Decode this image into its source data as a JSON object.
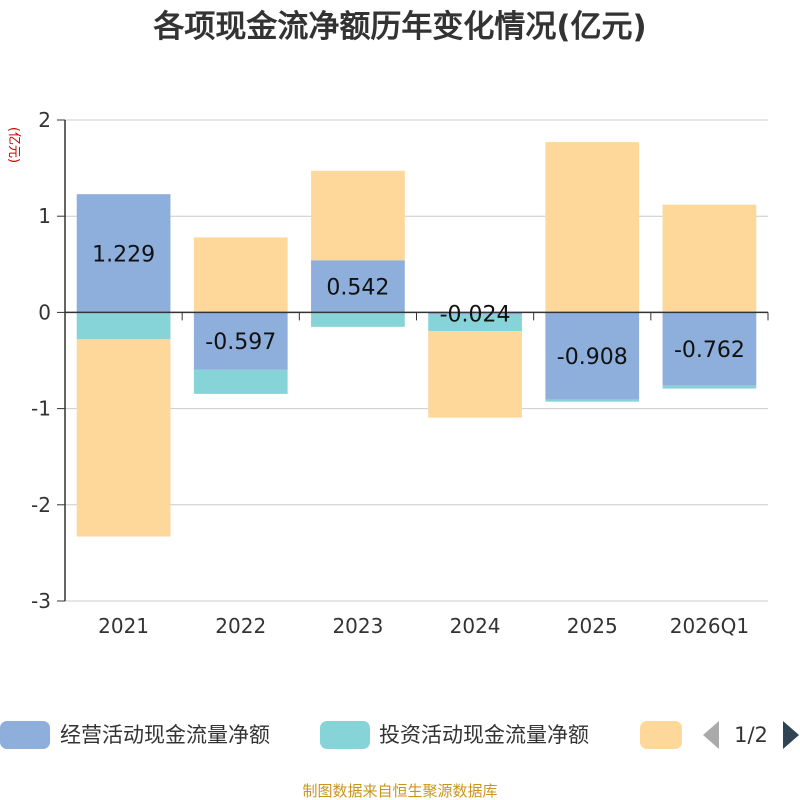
{
  "chart_data": {
    "type": "bar",
    "stacked": true,
    "title": "各项现金流净额历年变化情况(亿元)",
    "ylabel": "(亿元)",
    "xlabel": "",
    "ylim": [
      -3,
      2
    ],
    "yticks": [
      "2",
      "1",
      "0",
      "-1",
      "-2",
      "-3"
    ],
    "grid": true,
    "legend_position": "bottom",
    "categories": [
      "2021",
      "2022",
      "2023",
      "2024",
      "2025",
      "2026Q1"
    ],
    "series": [
      {
        "name": "经营活动现金流量净额",
        "color": "#8eaedb",
        "values": [
          1.229,
          -0.597,
          0.542,
          -0.024,
          -0.908,
          -0.762
        ],
        "labels": [
          "1.229",
          "-0.597",
          "0.542",
          "-0.024",
          "-0.908",
          "-0.762"
        ]
      },
      {
        "name": "投资活动现金流量净额",
        "color": "#86d4d8",
        "values": [
          -0.28,
          -0.25,
          -0.15,
          -0.17,
          -0.02,
          -0.03
        ]
      },
      {
        "name": "",
        "color": "#fdd89a",
        "values": [
          -2.05,
          0.78,
          0.93,
          -0.9,
          1.77,
          1.12
        ]
      }
    ]
  },
  "legend": {
    "items": [
      "经营活动现金流量净额",
      "投资活动现金流量净额",
      ""
    ],
    "page_indicator": "1/2"
  },
  "source": "制图数据来自恒生聚源数据库",
  "colors": {
    "operating": "#8eaedb",
    "investing": "#86d4d8",
    "third": "#fdd89a",
    "source_text": "#c8961e",
    "axis": "#333333",
    "grid": "#cccccc"
  },
  "icons": {
    "prev": "triangle-left-icon",
    "next": "triangle-right-icon"
  }
}
